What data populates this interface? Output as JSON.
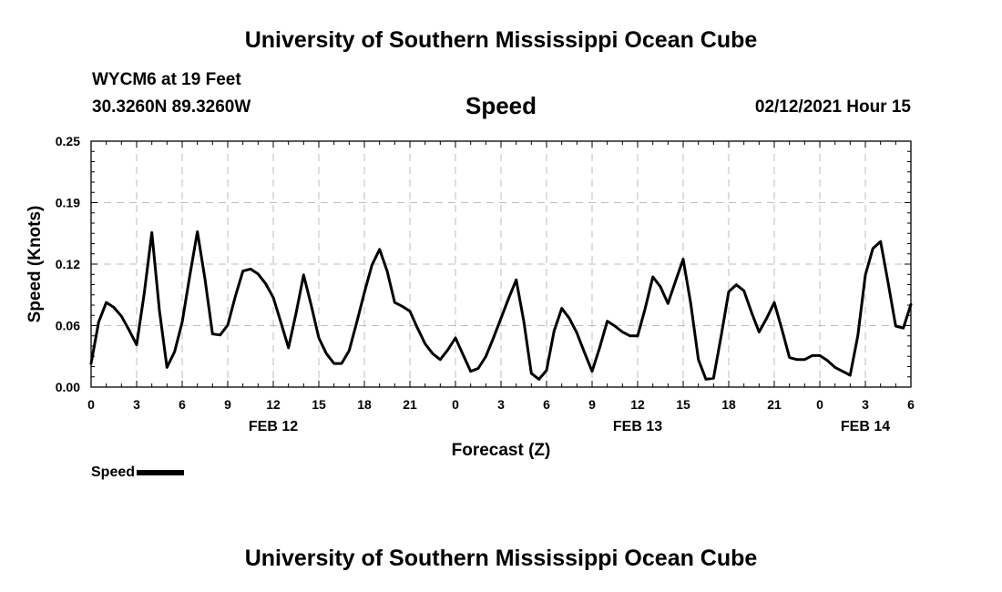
{
  "header": {
    "title": "University of Southern Mississippi Ocean Cube",
    "station": "WYCM6 at 19 Feet",
    "coords": "30.3260N 89.3260W",
    "datetime": "02/12/2021 Hour 15"
  },
  "footer": {
    "title": "University of Southern Mississippi Ocean Cube"
  },
  "legend": {
    "label": "Speed",
    "color": "#000000"
  },
  "chart_data": {
    "type": "line",
    "title": "Speed",
    "xlabel": "Forecast (Z)",
    "ylabel": "Speed (Knots)",
    "ylim": [
      0,
      0.25
    ],
    "xlim": [
      0,
      54
    ],
    "x_unit": "hours after 00Z FEB 12",
    "grid": true,
    "y_ticks": [
      "0.00",
      "0.06",
      "0.12",
      "0.19",
      "0.25"
    ],
    "y_tick_values": [
      0,
      0.0625,
      0.125,
      0.1875,
      0.25
    ],
    "x_ticks": [
      {
        "x": 0,
        "label": "0"
      },
      {
        "x": 3,
        "label": "3"
      },
      {
        "x": 6,
        "label": "6"
      },
      {
        "x": 9,
        "label": "9"
      },
      {
        "x": 12,
        "label": "12"
      },
      {
        "x": 15,
        "label": "15"
      },
      {
        "x": 18,
        "label": "18"
      },
      {
        "x": 21,
        "label": "21"
      },
      {
        "x": 24,
        "label": "0"
      },
      {
        "x": 27,
        "label": "3"
      },
      {
        "x": 30,
        "label": "6"
      },
      {
        "x": 33,
        "label": "9"
      },
      {
        "x": 36,
        "label": "12"
      },
      {
        "x": 39,
        "label": "15"
      },
      {
        "x": 42,
        "label": "18"
      },
      {
        "x": 45,
        "label": "21"
      },
      {
        "x": 48,
        "label": "0"
      },
      {
        "x": 51,
        "label": "3"
      },
      {
        "x": 54,
        "label": "6"
      }
    ],
    "date_labels": [
      {
        "x": 12,
        "label": "FEB 12"
      },
      {
        "x": 36,
        "label": "FEB 13"
      },
      {
        "x": 51,
        "label": "FEB 14"
      }
    ],
    "series": [
      {
        "name": "Speed",
        "color": "#000000",
        "points": [
          [
            0,
            0.024
          ],
          [
            0.5,
            0.066
          ],
          [
            1,
            0.086
          ],
          [
            1.5,
            0.081
          ],
          [
            2,
            0.072
          ],
          [
            2.5,
            0.058
          ],
          [
            3,
            0.043
          ],
          [
            3.5,
            0.095
          ],
          [
            4,
            0.157
          ],
          [
            4.5,
            0.078
          ],
          [
            5,
            0.02
          ],
          [
            5.5,
            0.036
          ],
          [
            6,
            0.066
          ],
          [
            6.5,
            0.113
          ],
          [
            7,
            0.158
          ],
          [
            7.5,
            0.11
          ],
          [
            8,
            0.054
          ],
          [
            8.5,
            0.053
          ],
          [
            9,
            0.063
          ],
          [
            9.5,
            0.092
          ],
          [
            10,
            0.118
          ],
          [
            10.5,
            0.12
          ],
          [
            11,
            0.115
          ],
          [
            11.5,
            0.105
          ],
          [
            12,
            0.091
          ],
          [
            12.5,
            0.066
          ],
          [
            13,
            0.04
          ],
          [
            13.5,
            0.075
          ],
          [
            14,
            0.114
          ],
          [
            14.5,
            0.083
          ],
          [
            15,
            0.05
          ],
          [
            15.5,
            0.034
          ],
          [
            16,
            0.024
          ],
          [
            16.5,
            0.024
          ],
          [
            17,
            0.037
          ],
          [
            17.5,
            0.066
          ],
          [
            18,
            0.096
          ],
          [
            18.5,
            0.124
          ],
          [
            19,
            0.14
          ],
          [
            19.5,
            0.118
          ],
          [
            20,
            0.086
          ],
          [
            20.5,
            0.082
          ],
          [
            21,
            0.077
          ],
          [
            21.5,
            0.06
          ],
          [
            22,
            0.044
          ],
          [
            22.5,
            0.034
          ],
          [
            23,
            0.028
          ],
          [
            23.5,
            0.038
          ],
          [
            24,
            0.05
          ],
          [
            24.5,
            0.033
          ],
          [
            25,
            0.016
          ],
          [
            25.5,
            0.019
          ],
          [
            26,
            0.031
          ],
          [
            26.5,
            0.05
          ],
          [
            27,
            0.07
          ],
          [
            27.5,
            0.09
          ],
          [
            28,
            0.109
          ],
          [
            28.5,
            0.067
          ],
          [
            29,
            0.014
          ],
          [
            29.5,
            0.008
          ],
          [
            30,
            0.017
          ],
          [
            30.5,
            0.057
          ],
          [
            31,
            0.08
          ],
          [
            31.5,
            0.07
          ],
          [
            32,
            0.055
          ],
          [
            32.5,
            0.035
          ],
          [
            33,
            0.016
          ],
          [
            33.5,
            0.04
          ],
          [
            34,
            0.067
          ],
          [
            34.5,
            0.062
          ],
          [
            35,
            0.056
          ],
          [
            35.5,
            0.052
          ],
          [
            36,
            0.052
          ],
          [
            36.5,
            0.08
          ],
          [
            37,
            0.112
          ],
          [
            37.5,
            0.102
          ],
          [
            38,
            0.085
          ],
          [
            38.5,
            0.108
          ],
          [
            39,
            0.13
          ],
          [
            39.5,
            0.085
          ],
          [
            40,
            0.028
          ],
          [
            40.5,
            0.008
          ],
          [
            41,
            0.009
          ],
          [
            41.5,
            0.052
          ],
          [
            42,
            0.097
          ],
          [
            42.5,
            0.104
          ],
          [
            43,
            0.098
          ],
          [
            43.5,
            0.076
          ],
          [
            44,
            0.056
          ],
          [
            44.5,
            0.07
          ],
          [
            45,
            0.086
          ],
          [
            45.5,
            0.059
          ],
          [
            46,
            0.03
          ],
          [
            46.5,
            0.028
          ],
          [
            47,
            0.028
          ],
          [
            47.5,
            0.032
          ],
          [
            48,
            0.032
          ],
          [
            48.5,
            0.027
          ],
          [
            49,
            0.02
          ],
          [
            49.5,
            0.016
          ],
          [
            50,
            0.012
          ],
          [
            50.5,
            0.052
          ],
          [
            51,
            0.114
          ],
          [
            51.5,
            0.141
          ],
          [
            52,
            0.148
          ],
          [
            52.5,
            0.106
          ],
          [
            53,
            0.062
          ],
          [
            53.5,
            0.06
          ],
          [
            54,
            0.084
          ]
        ]
      }
    ]
  }
}
